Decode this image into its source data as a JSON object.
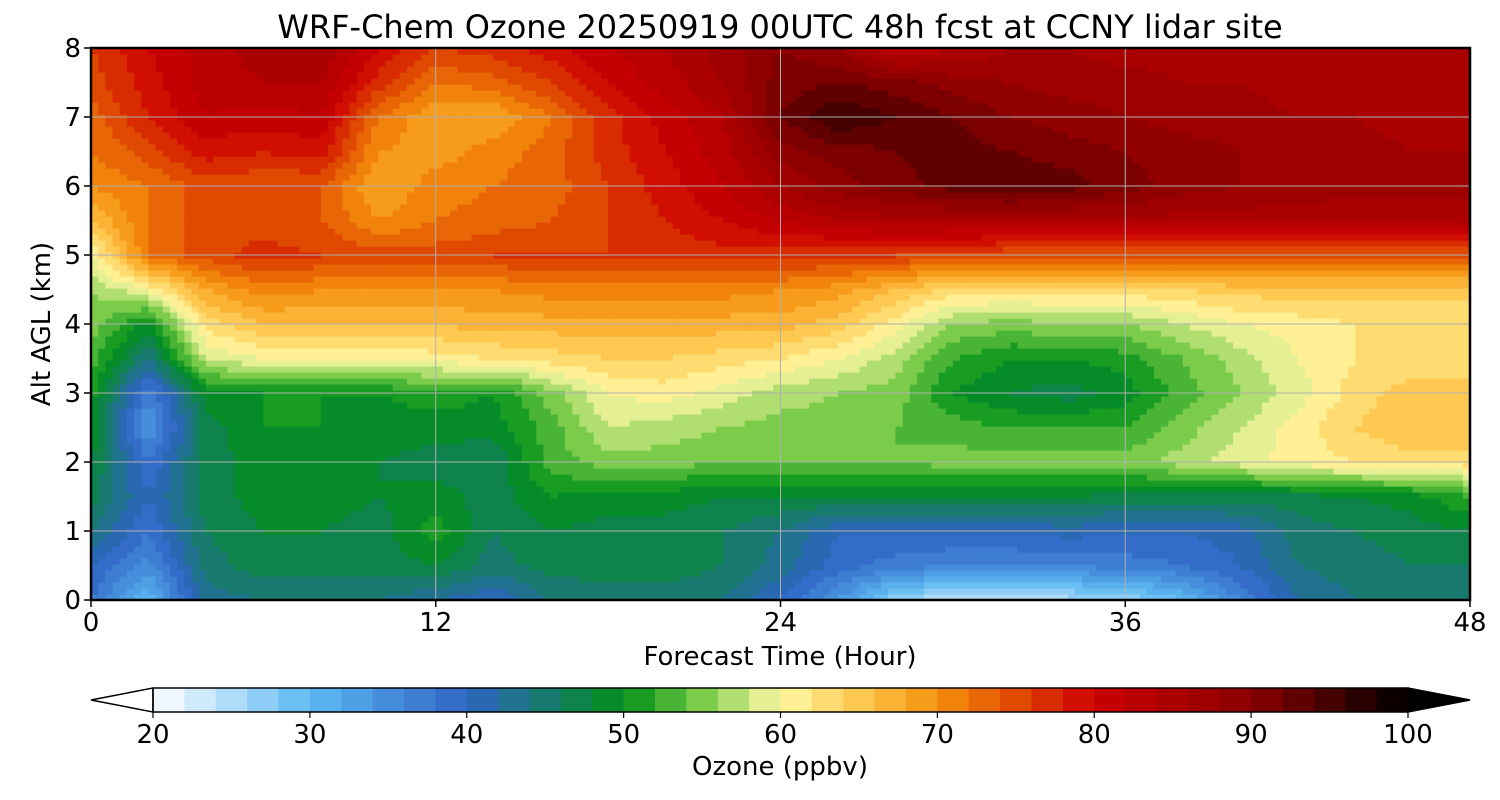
{
  "chart_data": {
    "type": "heatmap",
    "title": "WRF-Chem Ozone  20250919 00UTC 48h fcst at CCNY lidar site",
    "xlabel": "Forecast Time (Hour)",
    "ylabel": "Alt AGL (km)",
    "xlim": [
      0,
      48
    ],
    "ylim": [
      0,
      8
    ],
    "x_ticks": [
      "0",
      "12",
      "24",
      "36",
      "48"
    ],
    "y_ticks": [
      "0",
      "1",
      "2",
      "3",
      "4",
      "5",
      "6",
      "7",
      "8"
    ],
    "grid": true,
    "grid_x": [
      0,
      12,
      24,
      36,
      48
    ],
    "grid_y": [
      0,
      1,
      2,
      3,
      4,
      5,
      6,
      7,
      8
    ],
    "z_label": "Ozone  (ppbv)",
    "z_range": [
      20,
      100
    ],
    "colorbar_extend": "both",
    "colorbar_ticks": [
      "20",
      "30",
      "40",
      "50",
      "60",
      "70",
      "80",
      "90",
      "100"
    ],
    "colorbar_stops": [
      {
        "v": 20,
        "c": "#ffffff"
      },
      {
        "v": 30,
        "c": "#5cb8f2"
      },
      {
        "v": 40,
        "c": "#2f64c4"
      },
      {
        "v": 50,
        "c": "#009018"
      },
      {
        "v": 55,
        "c": "#7ccc4c"
      },
      {
        "v": 60,
        "c": "#fff9a6"
      },
      {
        "v": 65,
        "c": "#ffc850"
      },
      {
        "v": 70,
        "c": "#f5900c"
      },
      {
        "v": 75,
        "c": "#e04a00"
      },
      {
        "v": 80,
        "c": "#cc0000"
      },
      {
        "v": 90,
        "c": "#8a0000"
      },
      {
        "v": 100,
        "c": "#000000"
      }
    ],
    "hours": [
      0,
      2,
      4,
      6,
      8,
      10,
      12,
      14,
      16,
      18,
      20,
      22,
      24,
      26,
      28,
      30,
      32,
      34,
      36,
      38,
      40,
      42,
      44,
      46,
      48
    ],
    "altitudes_km": [
      0,
      0.5,
      1,
      1.5,
      2,
      2.5,
      3,
      3.5,
      4,
      4.5,
      5,
      5.5,
      6,
      6.5,
      7,
      7.5,
      8
    ],
    "ozone_ppbv": [
      [
        38,
        30,
        43,
        44,
        44,
        44,
        42,
        40,
        44,
        45,
        45,
        44,
        40,
        34,
        26,
        24,
        24,
        25,
        26,
        30,
        36,
        42,
        44,
        45,
        45
      ],
      [
        40,
        35,
        45,
        47,
        47,
        47,
        48,
        45,
        47,
        47,
        47,
        46,
        43,
        39,
        37,
        36,
        36,
        36,
        37,
        38,
        40,
        44,
        45,
        46,
        46
      ],
      [
        44,
        38,
        46,
        48,
        48,
        47,
        51,
        46,
        48,
        47,
        47,
        46,
        44,
        40,
        40,
        40,
        40,
        41,
        40,
        40,
        41,
        45,
        46,
        47,
        48
      ],
      [
        47,
        40,
        47,
        49,
        49,
        48,
        49,
        47,
        50,
        49,
        49,
        48,
        48,
        48,
        48,
        48,
        48,
        48,
        47,
        47,
        47,
        47,
        48,
        49,
        52
      ],
      [
        48,
        38,
        47,
        49,
        49,
        48,
        47,
        46,
        53,
        55,
        55,
        54,
        54,
        54,
        54,
        55,
        55,
        55,
        55,
        57,
        59,
        61,
        62,
        63,
        63
      ],
      [
        50,
        34,
        47,
        50,
        50,
        49,
        49,
        49,
        53,
        58,
        57,
        56,
        55,
        55,
        54,
        53,
        52,
        52,
        52,
        55,
        58,
        61,
        64,
        66,
        66
      ],
      [
        51,
        36,
        49,
        50,
        50,
        50,
        51,
        50,
        55,
        60,
        61,
        59,
        57,
        56,
        55,
        50,
        48,
        47,
        49,
        53,
        56,
        59,
        63,
        65,
        65
      ],
      [
        53,
        44,
        58,
        60,
        60,
        60,
        61,
        62,
        63,
        64,
        64,
        63,
        62,
        60,
        57,
        52,
        50,
        50,
        51,
        54,
        57,
        60,
        62,
        63,
        63
      ],
      [
        55,
        49,
        63,
        66,
        66,
        66,
        66,
        67,
        67,
        67,
        67,
        67,
        67,
        65,
        61,
        56,
        55,
        56,
        56,
        58,
        60,
        61,
        62,
        62,
        62
      ],
      [
        56,
        60,
        68,
        71,
        70,
        70,
        70,
        70,
        71,
        71,
        71,
        71,
        70,
        69,
        66,
        63,
        63,
        63,
        63,
        64,
        65,
        65,
        65,
        65,
        65
      ],
      [
        60,
        72,
        75,
        77,
        76,
        75,
        75,
        76,
        76,
        76,
        77,
        77,
        77,
        76,
        76,
        75,
        74,
        74,
        74,
        74,
        74,
        74,
        74,
        74,
        74
      ],
      [
        66,
        72,
        75,
        75,
        74,
        70,
        72,
        73,
        74,
        76,
        78,
        80,
        82,
        84,
        85,
        85,
        85,
        85,
        85,
        85,
        85,
        84,
        84,
        84,
        84
      ],
      [
        70,
        72,
        75,
        74,
        74,
        68,
        71,
        72,
        73,
        76,
        79,
        82,
        86,
        89,
        91,
        93,
        94,
        93,
        91,
        89,
        88,
        88,
        87,
        87,
        87
      ],
      [
        72,
        75,
        79,
        78,
        79,
        70,
        69,
        71,
        73,
        77,
        80,
        83,
        89,
        91,
        92,
        93,
        92,
        91,
        90,
        89,
        88,
        87,
        87,
        86,
        86
      ],
      [
        73,
        78,
        82,
        81,
        82,
        72,
        68,
        68,
        72,
        77,
        81,
        84,
        92,
        96,
        94,
        92,
        90,
        89,
        88,
        87,
        87,
        86,
        86,
        85,
        85
      ],
      [
        75,
        79,
        83,
        84,
        84,
        77,
        72,
        73,
        76,
        80,
        83,
        86,
        91,
        92,
        91,
        89,
        88,
        87,
        87,
        86,
        86,
        85,
        85,
        85,
        85
      ],
      [
        76,
        80,
        83,
        85,
        86,
        80,
        76,
        77,
        79,
        82,
        84,
        87,
        90,
        88,
        82,
        84,
        86,
        86,
        85,
        85,
        85,
        85,
        85,
        85,
        85
      ]
    ]
  }
}
